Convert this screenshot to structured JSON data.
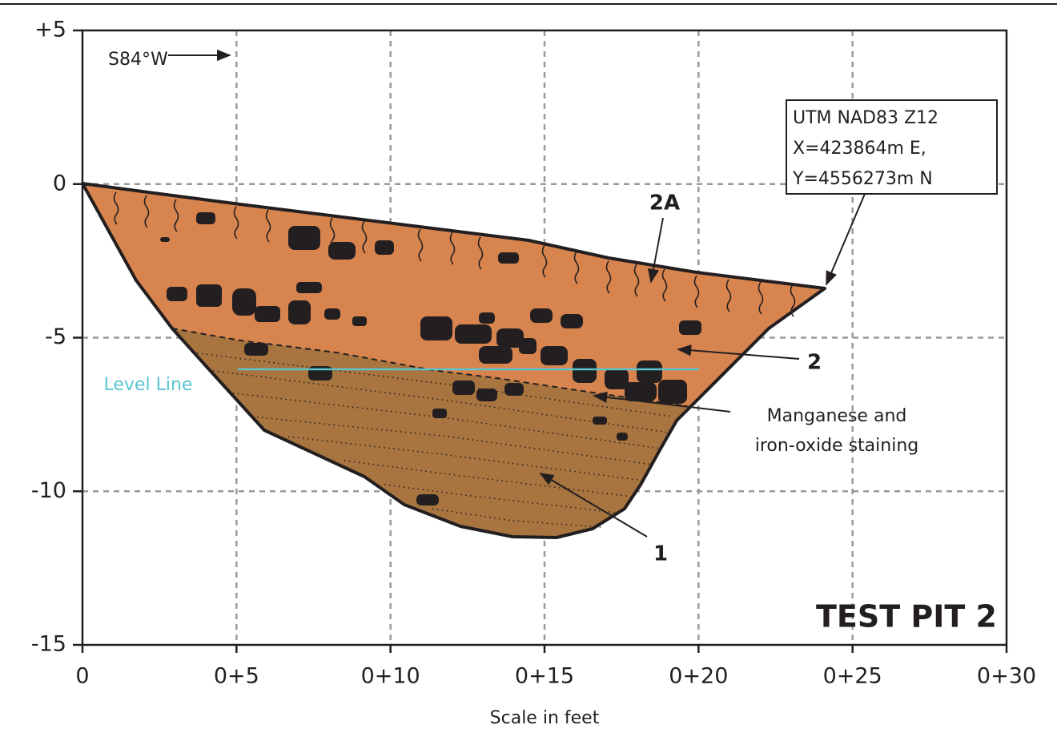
{
  "title": "TEST PIT 2",
  "axes": {
    "xlabel": "Scale in feet",
    "xlim": [
      0,
      30
    ],
    "xticks": [
      0,
      {
        "value": 5,
        "label": "0+5"
      },
      {
        "value": 10,
        "label": "0+10"
      },
      {
        "value": 15,
        "label": "0+15"
      },
      {
        "value": 20,
        "label": "0+20"
      },
      {
        "value": 25,
        "label": "0+25"
      },
      {
        "value": 30,
        "label": "0+30"
      }
    ],
    "ylim": [
      -15,
      5
    ],
    "yticks": [
      {
        "value": 5,
        "label": "+5"
      },
      0,
      -5,
      -10,
      -15
    ],
    "grid": true
  },
  "annotations": {
    "direction": "S84°W",
    "coordinates": [
      "UTM NAD83 Z12",
      "X=423864m E,",
      "Y=4556273m N"
    ],
    "unit_2a": "2A",
    "unit_2": "2",
    "unit_1": "1",
    "staining": [
      "Manganese and",
      "iron-oxide staining"
    ],
    "level_line": "Level Line"
  }
}
